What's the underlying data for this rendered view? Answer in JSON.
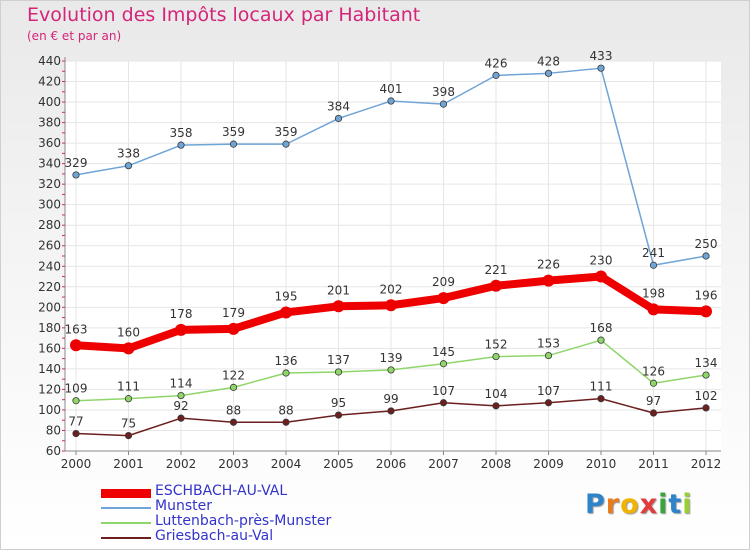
{
  "title": "Evolution des Impôts locaux par Habitant",
  "subtitle": "(en € et par an)",
  "brand": {
    "letters": [
      "P",
      "r",
      "o",
      "x",
      "i",
      "t",
      "i"
    ],
    "colors": [
      "#2f83c8",
      "#e87c1e",
      "#f0b400",
      "#e23c3c",
      "#3aa63a",
      "#2f83c8",
      "#9acd32"
    ]
  },
  "chart_data": {
    "type": "line",
    "x": [
      "2000",
      "2001",
      "2002",
      "2003",
      "2004",
      "2005",
      "2006",
      "2007",
      "2008",
      "2009",
      "2010",
      "2011",
      "2012"
    ],
    "ylim": [
      60,
      440
    ],
    "yticks": [
      60,
      80,
      100,
      120,
      140,
      160,
      180,
      200,
      220,
      240,
      260,
      280,
      300,
      320,
      340,
      360,
      380,
      400,
      420,
      440
    ],
    "grid": true,
    "legend_position": "bottom-left",
    "series": [
      {
        "name": "ESCHBACH-AU-VAL",
        "color": "#ee0000",
        "thick": true,
        "values": [
          163,
          160,
          178,
          179,
          195,
          201,
          202,
          209,
          221,
          226,
          230,
          198,
          196
        ]
      },
      {
        "name": "Munster",
        "color": "#6fa4d6",
        "thick": false,
        "values": [
          329,
          338,
          358,
          359,
          359,
          384,
          401,
          398,
          426,
          428,
          433,
          241,
          250
        ]
      },
      {
        "name": "Luttenbach-près-Munster",
        "color": "#8fd66a",
        "thick": false,
        "values": [
          109,
          111,
          114,
          122,
          136,
          137,
          139,
          145,
          152,
          153,
          168,
          126,
          134
        ]
      },
      {
        "name": "Griesbach-au-Val",
        "color": "#6b1f1f",
        "thick": false,
        "values": [
          77,
          75,
          92,
          88,
          88,
          95,
          99,
          107,
          104,
          107,
          111,
          97,
          102
        ]
      }
    ]
  }
}
